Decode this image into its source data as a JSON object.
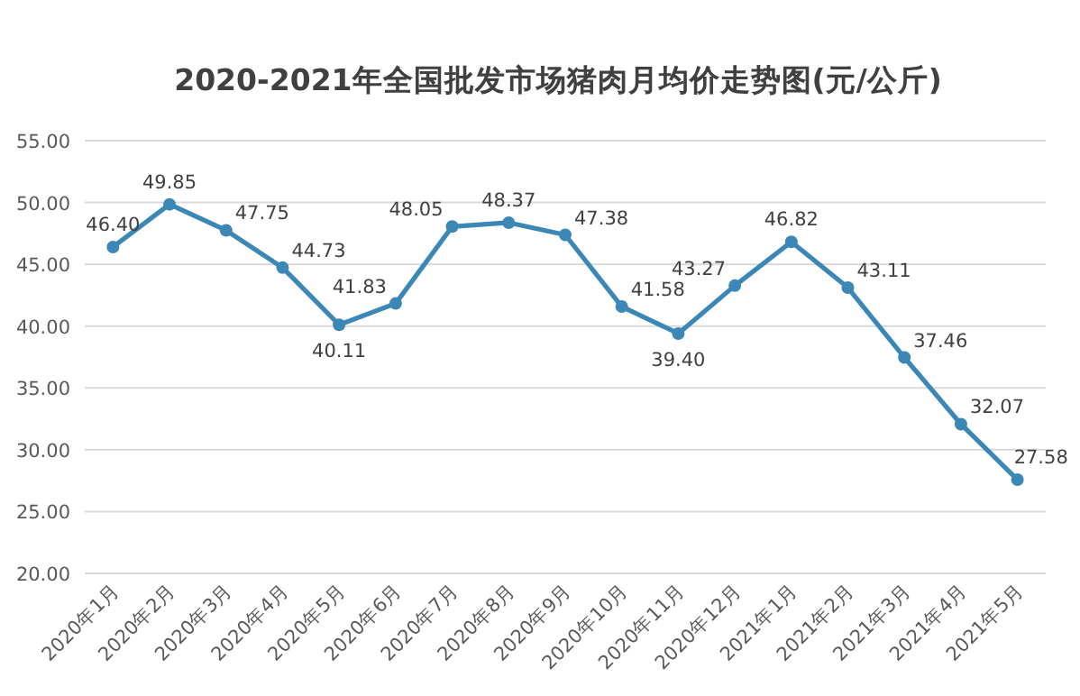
{
  "chart_data": {
    "type": "line",
    "title": "2020-2021年全国批发市场猪肉月均价走势图(元/公斤)",
    "categories": [
      "2020年1月",
      "2020年2月",
      "2020年3月",
      "2020年4月",
      "2020年5月",
      "2020年6月",
      "2020年7月",
      "2020年8月",
      "2020年9月",
      "2020年10月",
      "2020年11月",
      "2020年12月",
      "2021年1月",
      "2021年2月",
      "2021年3月",
      "2021年4月",
      "2021年5月"
    ],
    "values": [
      46.4,
      49.85,
      47.75,
      44.73,
      40.11,
      41.83,
      48.05,
      48.37,
      47.38,
      41.58,
      39.4,
      43.27,
      46.82,
      43.11,
      37.46,
      32.07,
      27.58
    ],
    "value_labels": [
      "46.40",
      "49.85",
      "47.75",
      "44.73",
      "40.11",
      "41.83",
      "48.05",
      "48.37",
      "47.38",
      "41.58",
      "39.40",
      "43.27",
      "46.82",
      "43.11",
      "37.46",
      "32.07",
      "27.58"
    ],
    "color": "#3b87b5",
    "marker": "circle",
    "grid": "y",
    "ylim": [
      20,
      55
    ],
    "yticks": [
      {
        "value": 20,
        "label": "20.00"
      },
      {
        "value": 25,
        "label": "25.00"
      },
      {
        "value": 30,
        "label": "30.00"
      },
      {
        "value": 35,
        "label": "35.00"
      },
      {
        "value": 40,
        "label": "40.00"
      },
      {
        "value": 45,
        "label": "45.00"
      },
      {
        "value": 50,
        "label": "50.00"
      },
      {
        "value": 55,
        "label": "55.00"
      }
    ]
  }
}
